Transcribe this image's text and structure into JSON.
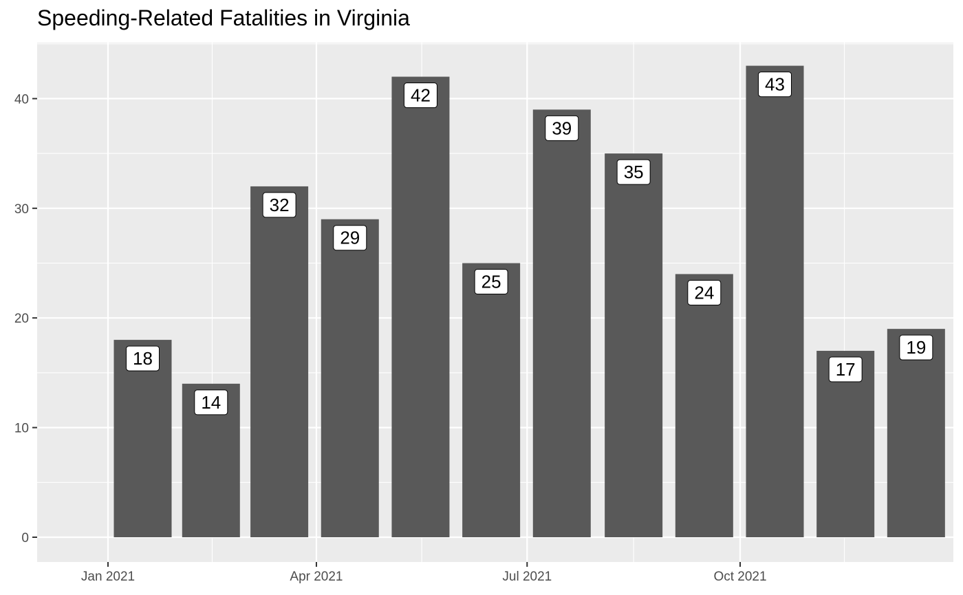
{
  "chart_data": {
    "type": "bar",
    "title": "Speeding-Related Fatalities in Virginia",
    "xlabel": "",
    "ylabel": "",
    "categories": [
      "2021-01",
      "2021-02",
      "2021-03",
      "2021-04",
      "2021-05",
      "2021-06",
      "2021-07",
      "2021-08",
      "2021-09",
      "2021-10",
      "2021-11",
      "2021-12"
    ],
    "values": [
      18,
      14,
      32,
      29,
      42,
      25,
      39,
      35,
      24,
      43,
      17,
      19
    ],
    "x_ticks": [
      {
        "date": "2021-01-01",
        "label": "Jan 2021"
      },
      {
        "date": "2021-04-01",
        "label": "Apr 2021"
      },
      {
        "date": "2021-07-01",
        "label": "Jul 2021"
      },
      {
        "date": "2021-10-01",
        "label": "Oct 2021"
      }
    ],
    "y_ticks": [
      0,
      10,
      20,
      30,
      40
    ],
    "ylim": [
      0,
      45
    ],
    "grid": true,
    "legend": "none",
    "colors": {
      "bar": "#595959",
      "panel": "#ebebeb",
      "grid": "#ffffff",
      "label_fill": "#ffffff",
      "label_border": "#000000"
    }
  }
}
